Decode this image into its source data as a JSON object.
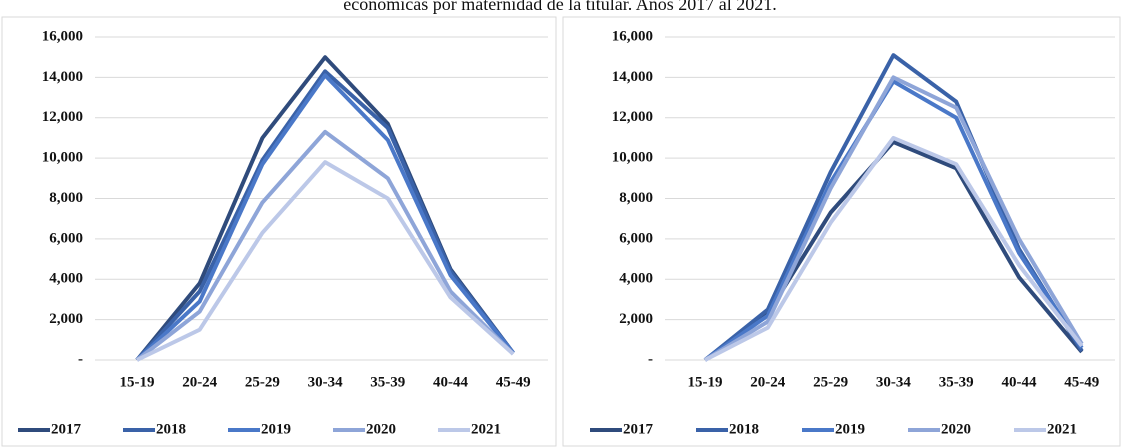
{
  "title": "económicas por maternidad de la titular. Años 2017 al 2021.",
  "chart_data": [
    {
      "type": "line",
      "categories": [
        "15-19",
        "20-24",
        "25-29",
        "30-34",
        "35-39",
        "40-44",
        "45-49"
      ],
      "ylim": [
        0,
        16000
      ],
      "yticks": [
        {
          "value": 0,
          "label": "-"
        },
        {
          "value": 2000,
          "label": "2,000"
        },
        {
          "value": 4000,
          "label": "4,000"
        },
        {
          "value": 6000,
          "label": "6,000"
        },
        {
          "value": 8000,
          "label": "8,000"
        },
        {
          "value": 10000,
          "label": "10,000"
        },
        {
          "value": 12000,
          "label": "12,000"
        },
        {
          "value": 14000,
          "label": "14,000"
        },
        {
          "value": 16000,
          "label": "16,000"
        }
      ],
      "grid": true,
      "legend": "bottom",
      "series": [
        {
          "name": "2017",
          "color": "#2f4b7c",
          "values": [
            0,
            3800,
            11000,
            15000,
            11700,
            4500,
            350
          ]
        },
        {
          "name": "2018",
          "color": "#3a62a8",
          "values": [
            0,
            3400,
            9900,
            14300,
            11500,
            4400,
            350
          ]
        },
        {
          "name": "2019",
          "color": "#4a78c8",
          "values": [
            0,
            2900,
            9700,
            14100,
            10900,
            4200,
            350
          ]
        },
        {
          "name": "2020",
          "color": "#8ea5d8",
          "values": [
            0,
            2400,
            7800,
            11300,
            9000,
            3400,
            300
          ]
        },
        {
          "name": "2021",
          "color": "#bcc8e8",
          "values": [
            0,
            1500,
            6300,
            9800,
            8000,
            3100,
            300
          ]
        }
      ]
    },
    {
      "type": "line",
      "categories": [
        "15-19",
        "20-24",
        "25-29",
        "30-34",
        "35-39",
        "40-44",
        "45-49"
      ],
      "ylim": [
        0,
        16000
      ],
      "yticks": [
        {
          "value": 0,
          "label": "-"
        },
        {
          "value": 2000,
          "label": "2,000"
        },
        {
          "value": 4000,
          "label": "4,000"
        },
        {
          "value": 6000,
          "label": "6,000"
        },
        {
          "value": 8000,
          "label": "8,000"
        },
        {
          "value": 10000,
          "label": "10,000"
        },
        {
          "value": 12000,
          "label": "12,000"
        },
        {
          "value": 14000,
          "label": "14,000"
        },
        {
          "value": 16000,
          "label": "16,000"
        }
      ],
      "grid": true,
      "legend": "bottom",
      "series": [
        {
          "name": "2017",
          "color": "#2f4b7c",
          "values": [
            0,
            2300,
            7300,
            10800,
            9500,
            4100,
            400
          ]
        },
        {
          "name": "2018",
          "color": "#3a62a8",
          "values": [
            0,
            2500,
            9300,
            15100,
            12800,
            5500,
            450
          ]
        },
        {
          "name": "2019",
          "color": "#4a78c8",
          "values": [
            0,
            2200,
            8800,
            13800,
            12000,
            5300,
            600
          ]
        },
        {
          "name": "2020",
          "color": "#8ea5d8",
          "values": [
            0,
            1900,
            8500,
            14000,
            12500,
            6000,
            800
          ]
        },
        {
          "name": "2021",
          "color": "#bcc8e8",
          "values": [
            0,
            1600,
            6800,
            11000,
            9700,
            4700,
            700
          ]
        }
      ]
    }
  ]
}
